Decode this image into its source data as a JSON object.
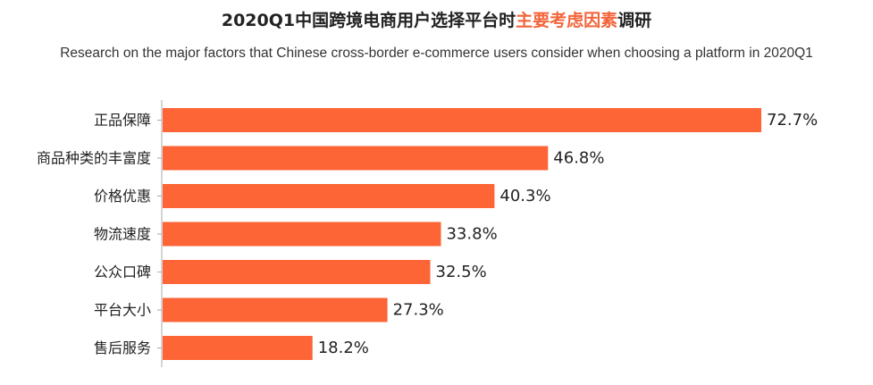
{
  "title": {
    "prefix": "2020Q1中国跨境电商用户选择平台时",
    "highlight": "主要考虑因素",
    "suffix": "调研"
  },
  "subtitle": "Research on the major factors that Chinese cross-border e-commerce users consider when choosing a platform in 2020Q1",
  "colors": {
    "bar": "#fd6436",
    "highlight": "#f3643a",
    "axis": "#aaaaaa",
    "text": "#222222"
  },
  "chart_data": {
    "type": "bar",
    "orientation": "horizontal",
    "categories": [
      "正品保障",
      "商品种类的丰富度",
      "价格优惠",
      "物流速度",
      "公众口碑",
      "平台大小",
      "售后服务"
    ],
    "values": [
      72.7,
      46.8,
      40.3,
      33.8,
      32.5,
      27.3,
      18.2
    ],
    "value_labels": [
      "72.7%",
      "46.8%",
      "40.3%",
      "33.8%",
      "32.5%",
      "27.3%",
      "18.2%"
    ],
    "unit": "%",
    "xlim": [
      0,
      72.7
    ],
    "grid": false,
    "legend": "none"
  }
}
